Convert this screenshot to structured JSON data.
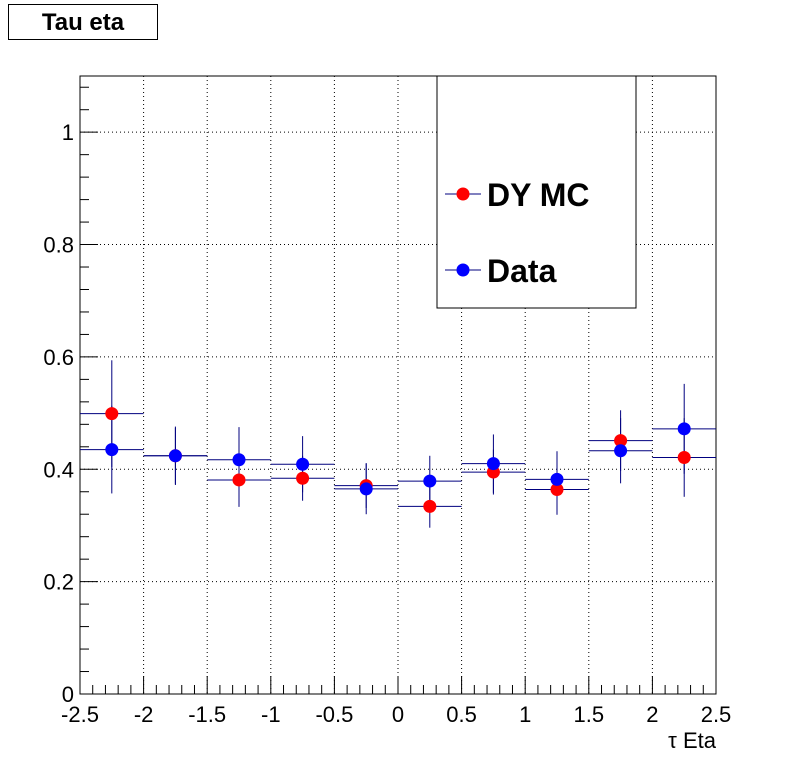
{
  "chart_data": {
    "type": "scatter",
    "title": "Tau  eta",
    "xlabel": "τ Eta",
    "ylabel": "",
    "xlim": [
      -2.5,
      2.5
    ],
    "ylim": [
      0,
      1.1
    ],
    "x_ticks": [
      "-2.5",
      "-2",
      "-1.5",
      "-1",
      "-0.5",
      "0",
      "0.5",
      "1",
      "1.5",
      "2",
      "2.5"
    ],
    "y_ticks": [
      "0",
      "0.2",
      "0.4",
      "0.6",
      "0.8",
      "1"
    ],
    "grid": true,
    "legend_position": "top-right",
    "bin_edges": [
      -2.5,
      -2.0,
      -1.5,
      -1.0,
      -0.5,
      0.0,
      0.5,
      1.0,
      1.5,
      2.0,
      2.5
    ],
    "series": [
      {
        "name": "DY MC",
        "color": "#ff0000",
        "x": [
          -2.25,
          -1.75,
          -1.25,
          -0.75,
          -0.25,
          0.25,
          0.75,
          1.25,
          1.75,
          2.25
        ],
        "y": [
          0.499,
          0.424,
          0.381,
          0.384,
          0.371,
          0.334,
          0.395,
          0.364,
          0.451,
          0.421
        ],
        "yerr": [
          0.095,
          0.05,
          0.048,
          0.04,
          0.04,
          0.038,
          0.04,
          0.045,
          0.054,
          0.07
        ]
      },
      {
        "name": "Data",
        "color": "#0000ff",
        "x": [
          -2.25,
          -1.75,
          -1.25,
          -0.75,
          -0.25,
          0.25,
          0.75,
          1.25,
          1.75,
          2.25
        ],
        "y": [
          0.435,
          0.424,
          0.417,
          0.409,
          0.365,
          0.379,
          0.41,
          0.382,
          0.433,
          0.472
        ],
        "yerr": [
          0.078,
          0.052,
          0.058,
          0.05,
          0.045,
          0.045,
          0.052,
          0.05,
          0.058,
          0.08
        ]
      }
    ]
  }
}
